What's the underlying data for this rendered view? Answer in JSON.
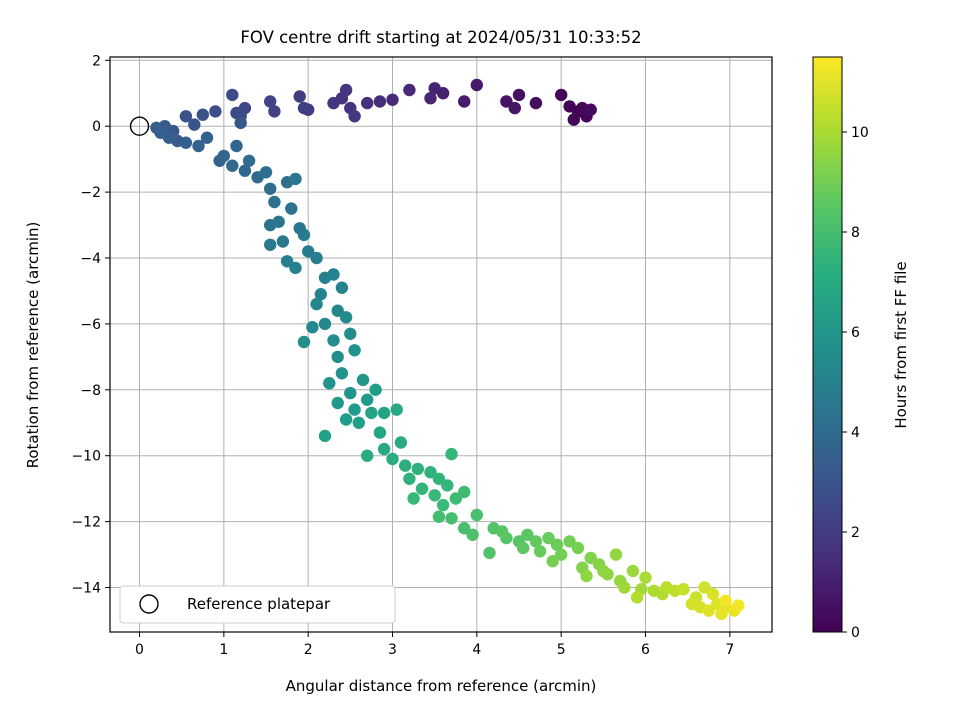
{
  "chart_data": {
    "type": "scatter",
    "title": "FOV centre drift starting at 2024/05/31 10:33:52",
    "xlabel": "Angular distance from reference (arcmin)",
    "ylabel": "Rotation from reference (arcmin)",
    "xlim": [
      -0.35,
      7.5
    ],
    "ylim": [
      -15.35,
      2.1
    ],
    "xticks": [
      0,
      1,
      2,
      3,
      4,
      5,
      6,
      7
    ],
    "yticks": [
      2,
      0,
      -2,
      -4,
      -6,
      -8,
      -10,
      -12,
      -14
    ],
    "grid": true,
    "colormap": "viridis",
    "colorbar": {
      "label": "Hours from first FF file",
      "range": [
        0,
        11.5
      ],
      "ticks": [
        0,
        2,
        4,
        6,
        8,
        10
      ]
    },
    "legend": {
      "position": "lower-left",
      "entries": [
        "Reference platepar"
      ]
    },
    "reference_point": {
      "x": 0,
      "y": 0
    },
    "series": [
      {
        "points": [
          [
            5.2,
            0.45,
            0.05
          ],
          [
            5.1,
            0.6,
            0.08
          ],
          [
            5.3,
            0.3,
            0.1
          ],
          [
            5.15,
            0.2,
            0.12
          ],
          [
            5.25,
            0.55,
            0.15
          ],
          [
            5.0,
            0.95,
            0.2
          ],
          [
            5.35,
            0.5,
            0.25
          ],
          [
            4.7,
            0.7,
            0.4
          ],
          [
            4.5,
            0.95,
            0.5
          ],
          [
            4.35,
            0.75,
            0.6
          ],
          [
            4.45,
            0.55,
            0.65
          ],
          [
            4.0,
            1.25,
            0.8
          ],
          [
            3.85,
            0.75,
            0.9
          ],
          [
            3.6,
            1.0,
            1.0
          ],
          [
            3.5,
            1.15,
            1.1
          ],
          [
            3.45,
            0.85,
            1.2
          ],
          [
            3.2,
            1.1,
            1.3
          ],
          [
            3.0,
            0.8,
            1.4
          ],
          [
            2.85,
            0.75,
            1.5
          ],
          [
            2.7,
            0.7,
            1.6
          ],
          [
            2.5,
            0.55,
            1.7
          ],
          [
            2.4,
            0.85,
            1.75
          ],
          [
            2.45,
            1.1,
            1.8
          ],
          [
            2.3,
            0.7,
            1.85
          ],
          [
            2.55,
            0.3,
            1.9
          ],
          [
            2.0,
            0.5,
            2.0
          ],
          [
            1.9,
            0.9,
            2.05
          ],
          [
            1.95,
            0.55,
            2.1
          ],
          [
            1.6,
            0.45,
            2.2
          ],
          [
            1.55,
            0.75,
            2.3
          ],
          [
            1.25,
            0.55,
            2.4
          ],
          [
            1.15,
            0.4,
            2.5
          ],
          [
            1.1,
            0.95,
            2.6
          ],
          [
            1.2,
            0.3,
            2.65
          ],
          [
            0.9,
            0.45,
            2.75
          ],
          [
            0.75,
            0.35,
            2.8
          ],
          [
            0.55,
            0.3,
            2.9
          ],
          [
            0.65,
            0.05,
            3.0
          ],
          [
            1.2,
            0.1,
            3.05
          ],
          [
            0.4,
            -0.15,
            3.1
          ],
          [
            0.3,
            0.0,
            3.2
          ],
          [
            0.45,
            -0.45,
            3.3
          ],
          [
            0.2,
            -0.05,
            3.35
          ],
          [
            0.35,
            -0.35,
            3.4
          ],
          [
            0.25,
            -0.2,
            3.45
          ],
          [
            0.55,
            -0.5,
            3.5
          ],
          [
            0.8,
            -0.35,
            3.55
          ],
          [
            0.7,
            -0.6,
            3.6
          ],
          [
            0.95,
            -1.05,
            3.7
          ],
          [
            1.0,
            -0.9,
            3.75
          ],
          [
            1.15,
            -0.6,
            3.8
          ],
          [
            1.1,
            -1.2,
            3.85
          ],
          [
            1.25,
            -1.35,
            3.9
          ],
          [
            1.4,
            -1.55,
            4.0
          ],
          [
            1.3,
            -1.05,
            4.05
          ],
          [
            1.55,
            -1.9,
            4.1
          ],
          [
            1.5,
            -1.4,
            4.15
          ],
          [
            1.75,
            -1.7,
            4.2
          ],
          [
            1.6,
            -2.3,
            4.3
          ],
          [
            1.8,
            -2.5,
            4.35
          ],
          [
            1.55,
            -3.0,
            4.4
          ],
          [
            1.85,
            -1.6,
            4.45
          ],
          [
            1.65,
            -2.9,
            4.5
          ],
          [
            1.9,
            -3.1,
            4.55
          ],
          [
            1.7,
            -3.5,
            4.6
          ],
          [
            1.55,
            -3.6,
            4.65
          ],
          [
            1.95,
            -3.3,
            4.7
          ],
          [
            2.0,
            -3.8,
            4.8
          ],
          [
            1.75,
            -4.1,
            4.85
          ],
          [
            2.1,
            -4.0,
            4.9
          ],
          [
            2.2,
            -4.6,
            5.0
          ],
          [
            1.85,
            -4.3,
            5.05
          ],
          [
            2.3,
            -4.5,
            5.1
          ],
          [
            2.15,
            -5.1,
            5.15
          ],
          [
            2.4,
            -4.9,
            5.2
          ],
          [
            2.1,
            -5.4,
            5.25
          ],
          [
            2.35,
            -5.6,
            5.3
          ],
          [
            2.2,
            -6.0,
            5.4
          ],
          [
            2.05,
            -6.1,
            5.45
          ],
          [
            2.45,
            -5.8,
            5.5
          ],
          [
            2.3,
            -6.5,
            5.55
          ],
          [
            2.5,
            -6.3,
            5.6
          ],
          [
            1.95,
            -6.55,
            5.65
          ],
          [
            2.35,
            -7.0,
            5.7
          ],
          [
            2.55,
            -6.8,
            5.8
          ],
          [
            2.4,
            -7.5,
            5.9
          ],
          [
            2.25,
            -7.8,
            5.95
          ],
          [
            2.5,
            -8.1,
            6.0
          ],
          [
            2.65,
            -7.7,
            6.05
          ],
          [
            2.35,
            -8.4,
            6.1
          ],
          [
            2.55,
            -8.6,
            6.2
          ],
          [
            2.7,
            -8.3,
            6.3
          ],
          [
            2.45,
            -8.9,
            6.4
          ],
          [
            2.8,
            -8.0,
            6.45
          ],
          [
            2.6,
            -9.0,
            6.5
          ],
          [
            2.2,
            -9.4,
            6.55
          ],
          [
            2.75,
            -8.7,
            6.6
          ],
          [
            2.9,
            -8.7,
            6.7
          ],
          [
            2.85,
            -9.3,
            6.8
          ],
          [
            3.05,
            -8.6,
            6.85
          ],
          [
            2.9,
            -9.8,
            6.9
          ],
          [
            3.1,
            -9.6,
            7.0
          ],
          [
            2.7,
            -10.0,
            7.05
          ],
          [
            3.0,
            -10.1,
            7.1
          ],
          [
            3.15,
            -10.3,
            7.2
          ],
          [
            3.3,
            -10.4,
            7.3
          ],
          [
            3.2,
            -10.7,
            7.35
          ],
          [
            3.45,
            -10.5,
            7.4
          ],
          [
            3.35,
            -11.0,
            7.5
          ],
          [
            3.55,
            -10.7,
            7.55
          ],
          [
            3.65,
            -10.9,
            7.6
          ],
          [
            3.7,
            -9.95,
            7.65
          ],
          [
            3.25,
            -11.3,
            7.7
          ],
          [
            3.5,
            -11.2,
            7.75
          ],
          [
            3.6,
            -11.5,
            7.8
          ],
          [
            3.75,
            -11.3,
            7.85
          ],
          [
            3.85,
            -11.1,
            7.9
          ],
          [
            3.55,
            -11.85,
            8.0
          ],
          [
            3.7,
            -11.9,
            8.05
          ],
          [
            3.85,
            -12.2,
            8.1
          ],
          [
            4.0,
            -11.8,
            8.15
          ],
          [
            3.95,
            -12.4,
            8.2
          ],
          [
            4.15,
            -12.95,
            8.3
          ],
          [
            4.2,
            -12.2,
            8.35
          ],
          [
            4.35,
            -12.5,
            8.4
          ],
          [
            4.5,
            -12.6,
            8.45
          ],
          [
            4.3,
            -12.3,
            8.5
          ],
          [
            4.6,
            -12.4,
            8.55
          ],
          [
            4.55,
            -12.8,
            8.6
          ],
          [
            4.7,
            -12.6,
            8.7
          ],
          [
            4.85,
            -12.5,
            8.8
          ],
          [
            4.75,
            -12.9,
            8.85
          ],
          [
            4.95,
            -12.7,
            8.9
          ],
          [
            5.1,
            -12.6,
            9.0
          ],
          [
            5.0,
            -13.0,
            9.05
          ],
          [
            4.9,
            -13.2,
            9.1
          ],
          [
            5.2,
            -12.8,
            9.15
          ],
          [
            5.35,
            -13.1,
            9.3
          ],
          [
            5.25,
            -13.4,
            9.35
          ],
          [
            5.45,
            -13.3,
            9.4
          ],
          [
            5.5,
            -13.5,
            9.5
          ],
          [
            5.3,
            -13.65,
            9.55
          ],
          [
            5.55,
            -13.6,
            9.6
          ],
          [
            5.65,
            -13.0,
            9.65
          ],
          [
            5.7,
            -13.8,
            9.7
          ],
          [
            5.85,
            -13.5,
            9.8
          ],
          [
            5.75,
            -14.0,
            9.85
          ],
          [
            5.95,
            -14.05,
            9.9
          ],
          [
            6.0,
            -13.7,
            10.0
          ],
          [
            6.1,
            -14.1,
            10.1
          ],
          [
            6.2,
            -14.2,
            10.15
          ],
          [
            5.9,
            -14.3,
            10.2
          ],
          [
            6.25,
            -14.0,
            10.3
          ],
          [
            6.35,
            -14.1,
            10.4
          ],
          [
            6.45,
            -14.05,
            10.5
          ],
          [
            6.6,
            -14.3,
            10.6
          ],
          [
            6.7,
            -14.0,
            10.7
          ],
          [
            6.55,
            -14.5,
            10.75
          ],
          [
            6.65,
            -14.6,
            10.8
          ],
          [
            6.8,
            -14.2,
            10.85
          ],
          [
            6.85,
            -14.5,
            10.9
          ],
          [
            6.75,
            -14.7,
            10.95
          ],
          [
            6.95,
            -14.6,
            11.0
          ],
          [
            6.9,
            -14.8,
            11.1
          ],
          [
            7.05,
            -14.7,
            11.2
          ],
          [
            7.1,
            -14.55,
            11.3
          ],
          [
            6.95,
            -14.4,
            11.35
          ]
        ]
      }
    ]
  }
}
